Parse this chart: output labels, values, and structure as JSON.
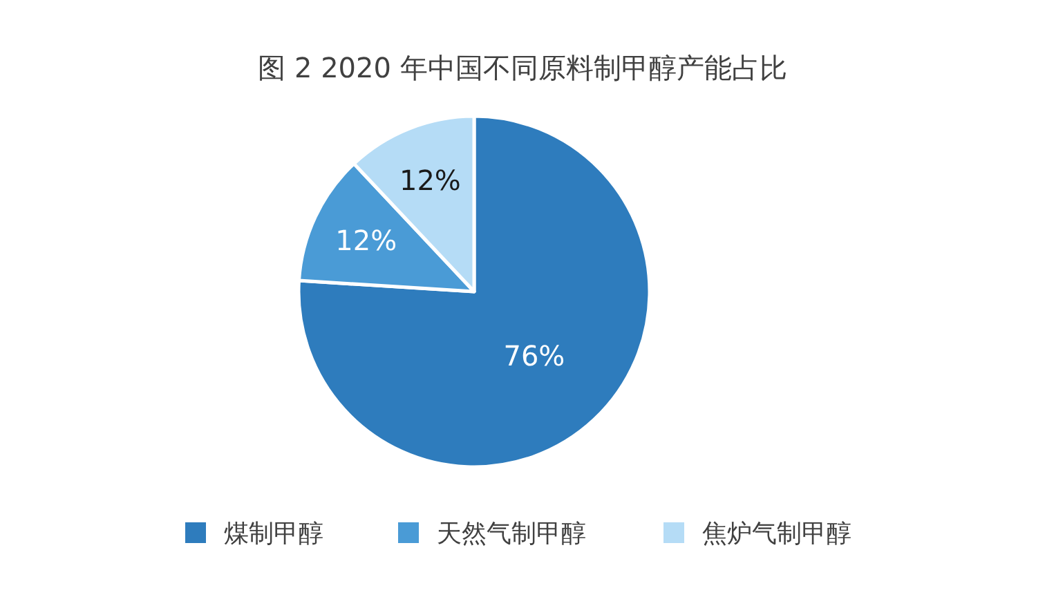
{
  "chart_data": {
    "type": "pie",
    "title": "图 2 2020 年中国不同原料制甲醇产能占比",
    "categories": [
      "煤制甲醇",
      "天然气制甲醇",
      "焦炉气制甲醇"
    ],
    "values": [
      76,
      12,
      12
    ],
    "colors": [
      "#2e7cbd",
      "#4a9bd6",
      "#b5dcf6"
    ],
    "value_labels": [
      "76%",
      "12%",
      "12%"
    ],
    "legend": "bottom"
  }
}
